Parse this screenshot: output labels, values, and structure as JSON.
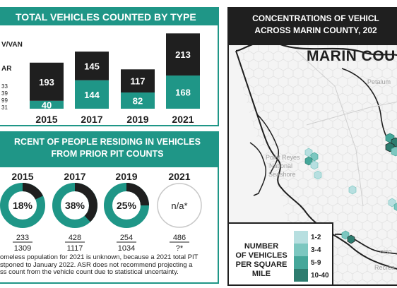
{
  "panel1": {
    "title": "TOTAL VEHICLES COUNTED BY TYPE",
    "legend_fragments": [
      "V/VAN",
      "AR"
    ],
    "stray_numbers": [
      "33",
      "39",
      "99",
      "31"
    ]
  },
  "panel2": {
    "title_line1": "RCENT OF PEOPLE RESIDING IN VEHICLES",
    "title_line2": "FROM PRIOR PIT COUNTS",
    "footnote_line1": "omeless population for 2021 is unknown, because a 2021 total PIT",
    "footnote_line2": "stponed to January 2022. ASR does not recommend projecting a",
    "footnote_line3": "ss count from the vehicle count due to statistical uncertainty."
  },
  "panel3": {
    "title_line1": "CONCENTRATIONS OF VEHICL",
    "title_line2": "ACROSS MARIN COUNTY, 202",
    "map_title": "MARIN COU",
    "places": [
      "Petalum",
      "Point Reyes",
      "National",
      "Seashore",
      "oiso",
      "Recrea"
    ],
    "legend_title": [
      "NUMBER",
      "OF VEHICLES",
      "PER SQUARE",
      "MILE"
    ],
    "legend_items": [
      "1-2",
      "3-4",
      "5-9",
      "10-40"
    ],
    "legend_colors": [
      "#b7dfe0",
      "#7cc7c0",
      "#45a79a",
      "#2d7c6f"
    ]
  },
  "chart_data": [
    {
      "type": "bar",
      "title": "TOTAL VEHICLES COUNTED BY TYPE",
      "categories": [
        "2015",
        "2017",
        "2019",
        "2021"
      ],
      "series": [
        {
          "values": [
            40,
            144,
            82,
            168
          ],
          "color": "#1f9687"
        },
        {
          "values": [
            193,
            145,
            117,
            213
          ],
          "color": "#1f1f1f"
        }
      ],
      "stacked": true
    },
    {
      "type": "pie",
      "title": "PERCENT OF PEOPLE RESIDING IN VEHICLES FROM PRIOR PIT COUNTS",
      "categories": [
        "2015",
        "2017",
        "2019",
        "2021"
      ],
      "values": [
        18,
        38,
        25,
        null
      ],
      "labels": [
        "18%",
        "38%",
        "25%",
        "n/a*"
      ],
      "numerators": [
        "233",
        "428",
        "254",
        "486"
      ],
      "denominators": [
        "1309",
        "1117",
        "1034",
        "?*"
      ],
      "colors": {
        "share": "#1f1f1f",
        "rest": "#1f9687"
      }
    }
  ]
}
